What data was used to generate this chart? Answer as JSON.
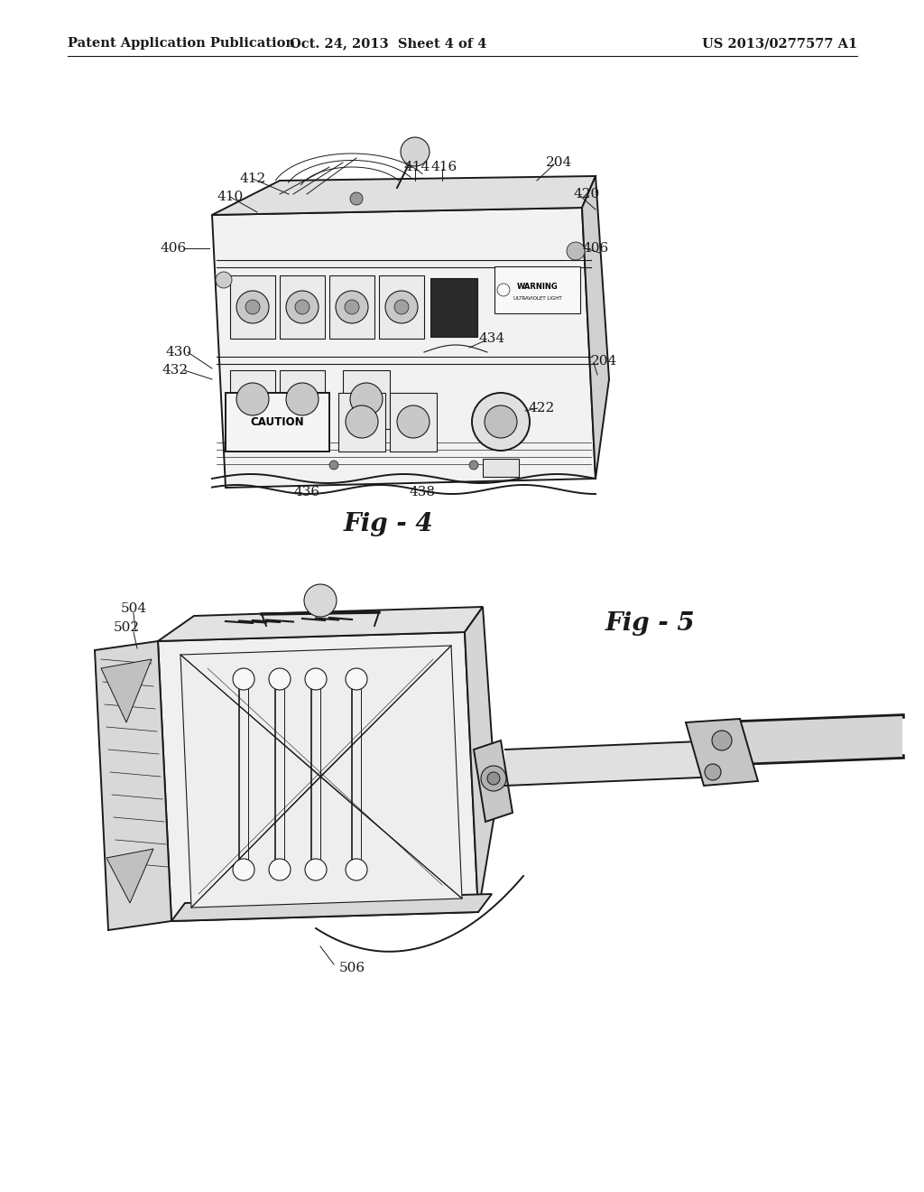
{
  "bg_color": "#ffffff",
  "header_left": "Patent Application Publication",
  "header_mid": "Oct. 24, 2013  Sheet 4 of 4",
  "header_right": "US 2013/0277577 A1",
  "fig4_label": "Fig - 4",
  "fig5_label": "Fig - 5",
  "line_color": "#1a1a1a",
  "text_color": "#1a1a1a",
  "header_fontsize": 10.5,
  "fig_label_fontsize": 20,
  "annotation_fontsize": 11
}
